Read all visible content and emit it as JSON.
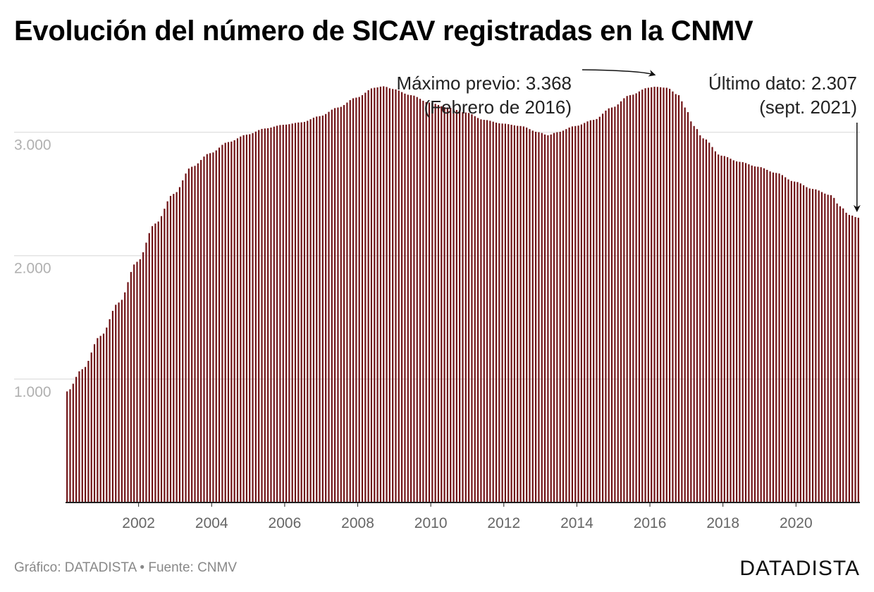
{
  "title": "Evolución del número de SICAV registradas en la CNMV",
  "footer": {
    "source": "Gráfico: DATADISTA • Fuente: CNMV",
    "brand": "DATADISTA"
  },
  "colors": {
    "bar": "#6e0f12",
    "grid": "#e3e3e3",
    "axis": "#222222"
  },
  "chart_data": {
    "type": "bar",
    "title": "Evolución del número de SICAV registradas en la CNMV",
    "frequency": "monthly",
    "x_start": "2000-01",
    "x_end": "2021-09",
    "ylim": [
      0,
      3500
    ],
    "y_ticks": [
      {
        "value": 1000,
        "label": "1.000"
      },
      {
        "value": 2000,
        "label": "2.000"
      },
      {
        "value": 3000,
        "label": "3.000"
      }
    ],
    "x_ticks": [
      "2002",
      "2004",
      "2006",
      "2008",
      "2010",
      "2012",
      "2014",
      "2016",
      "2018",
      "2020"
    ],
    "grid": true,
    "anchors": [
      [
        "2000-01",
        900
      ],
      [
        "2000-06",
        1080
      ],
      [
        "2000-12",
        1350
      ],
      [
        "2001-06",
        1620
      ],
      [
        "2001-12",
        1950
      ],
      [
        "2002-06",
        2260
      ],
      [
        "2002-12",
        2500
      ],
      [
        "2003-06",
        2720
      ],
      [
        "2003-12",
        2830
      ],
      [
        "2004-06",
        2920
      ],
      [
        "2004-12",
        2980
      ],
      [
        "2005-06",
        3030
      ],
      [
        "2005-12",
        3060
      ],
      [
        "2006-06",
        3080
      ],
      [
        "2006-12",
        3130
      ],
      [
        "2007-06",
        3200
      ],
      [
        "2007-12",
        3280
      ],
      [
        "2008-06",
        3360
      ],
      [
        "2008-09",
        3372
      ],
      [
        "2008-12",
        3350
      ],
      [
        "2009-06",
        3300
      ],
      [
        "2009-12",
        3240
      ],
      [
        "2010-06",
        3200
      ],
      [
        "2010-12",
        3160
      ],
      [
        "2011-06",
        3100
      ],
      [
        "2011-12",
        3070
      ],
      [
        "2012-06",
        3050
      ],
      [
        "2012-12",
        3000
      ],
      [
        "2013-03",
        2975
      ],
      [
        "2013-06",
        3000
      ],
      [
        "2013-12",
        3050
      ],
      [
        "2014-06",
        3100
      ],
      [
        "2014-12",
        3200
      ],
      [
        "2015-06",
        3300
      ],
      [
        "2015-12",
        3360
      ],
      [
        "2016-02",
        3368
      ],
      [
        "2016-06",
        3360
      ],
      [
        "2016-10",
        3300
      ],
      [
        "2016-12",
        3200
      ],
      [
        "2017-03",
        3050
      ],
      [
        "2017-06",
        2950
      ],
      [
        "2017-12",
        2810
      ],
      [
        "2018-06",
        2760
      ],
      [
        "2018-12",
        2720
      ],
      [
        "2019-06",
        2670
      ],
      [
        "2019-12",
        2600
      ],
      [
        "2020-06",
        2540
      ],
      [
        "2020-12",
        2490
      ],
      [
        "2021-03",
        2400
      ],
      [
        "2021-06",
        2330
      ],
      [
        "2021-09",
        2307
      ]
    ],
    "annotations": [
      {
        "lines": [
          "Máximo previo: 3.368",
          "(Febrero de 2016)"
        ],
        "date": "2016-02",
        "value": 3368
      },
      {
        "lines": [
          "Último dato: 2.307",
          "(sept. 2021)"
        ],
        "date": "2021-09",
        "value": 2307
      }
    ]
  }
}
